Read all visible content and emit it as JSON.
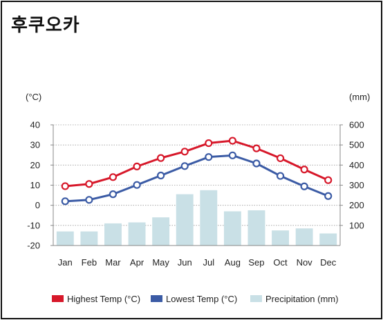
{
  "chart_data": {
    "type": "line",
    "title": "후쿠오카",
    "categories": [
      "Jan",
      "Feb",
      "Mar",
      "Apr",
      "May",
      "Jun",
      "Jul",
      "Aug",
      "Sep",
      "Oct",
      "Nov",
      "Dec"
    ],
    "left_axis": {
      "unit": "(°C)",
      "ylim": [
        -20,
        40
      ],
      "ticks": [
        40,
        30,
        20,
        10,
        0,
        -10,
        -20
      ]
    },
    "right_axis": {
      "unit": "(mm)",
      "ylim": [
        0,
        600
      ],
      "ticks": [
        600,
        500,
        400,
        300,
        200,
        100
      ]
    },
    "series": [
      {
        "name": "Highest Temp (°C)",
        "type": "line",
        "axis": "left",
        "color": "#d7182a",
        "values": [
          9.5,
          10.6,
          14.0,
          19.3,
          23.5,
          26.7,
          30.9,
          32.1,
          28.3,
          23.4,
          17.8,
          12.5
        ]
      },
      {
        "name": "Lowest Temp (°C)",
        "type": "line",
        "axis": "left",
        "color": "#3b5ba5",
        "values": [
          2.0,
          2.7,
          5.5,
          10.1,
          14.8,
          19.5,
          24.0,
          24.8,
          20.8,
          14.6,
          9.4,
          4.6
        ]
      },
      {
        "name": "Precipitation (mm)",
        "type": "bar",
        "axis": "right",
        "color": "#c9e0e6",
        "values": [
          70,
          70,
          110,
          115,
          140,
          255,
          275,
          170,
          175,
          75,
          85,
          60
        ]
      }
    ],
    "grid": true,
    "legend_position": "bottom"
  }
}
